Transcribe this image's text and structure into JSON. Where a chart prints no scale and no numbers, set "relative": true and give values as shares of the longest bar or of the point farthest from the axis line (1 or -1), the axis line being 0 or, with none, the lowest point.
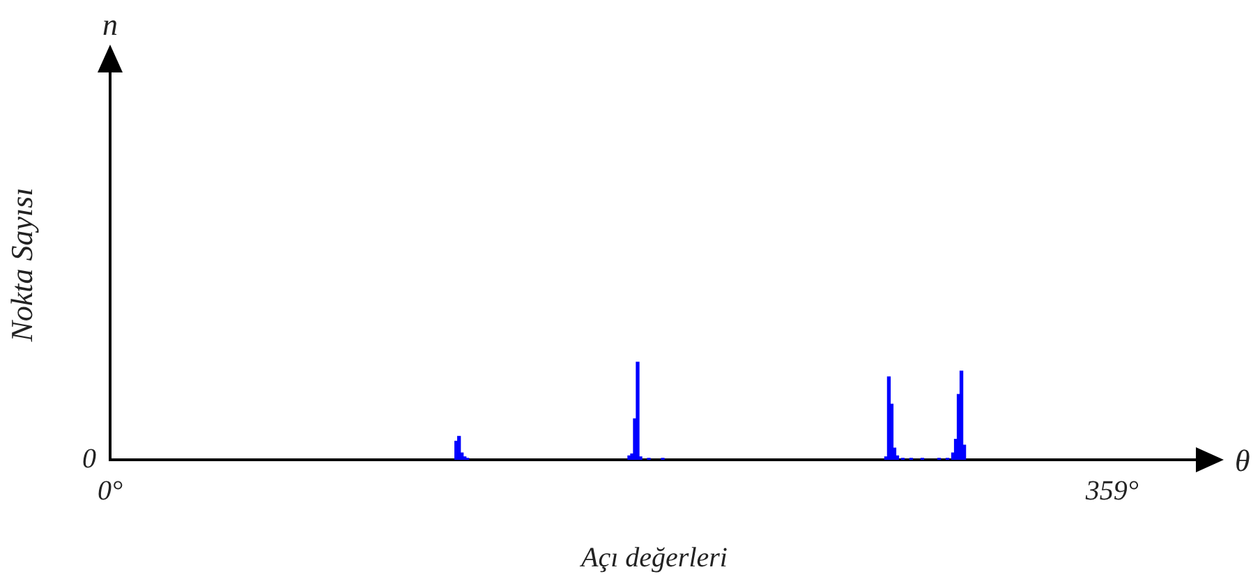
{
  "chart_data": {
    "type": "bar",
    "xlabel": "Açı değerleri",
    "ylabel": "Nokta Sayısı",
    "annotations": [
      "n",
      "θ",
      "0"
    ],
    "relative": true,
    "color": "#0000ff",
    "x": [
      124,
      125,
      126,
      127,
      128,
      186,
      187,
      188,
      189,
      190,
      193,
      198,
      278,
      279,
      280,
      281,
      282,
      284,
      287,
      291,
      297,
      300,
      302,
      303,
      304,
      305,
      306
    ],
    "values": [
      0.19,
      0.24,
      0.07,
      0.03,
      0.015,
      0.04,
      0.06,
      0.42,
      1,
      0.03,
      0.015,
      0.015,
      0.03,
      0.85,
      0.57,
      0.12,
      0.04,
      0.015,
      0.015,
      0.015,
      0.015,
      0.015,
      0.07,
      0.21,
      0.67,
      0.91,
      0.15
    ],
    "xlim": [
      0,
      390
    ],
    "xticks": [
      {
        "value": 0,
        "label": "0°"
      },
      {
        "value": 359,
        "label": "359°"
      }
    ],
    "grid": false,
    "legend": false
  }
}
